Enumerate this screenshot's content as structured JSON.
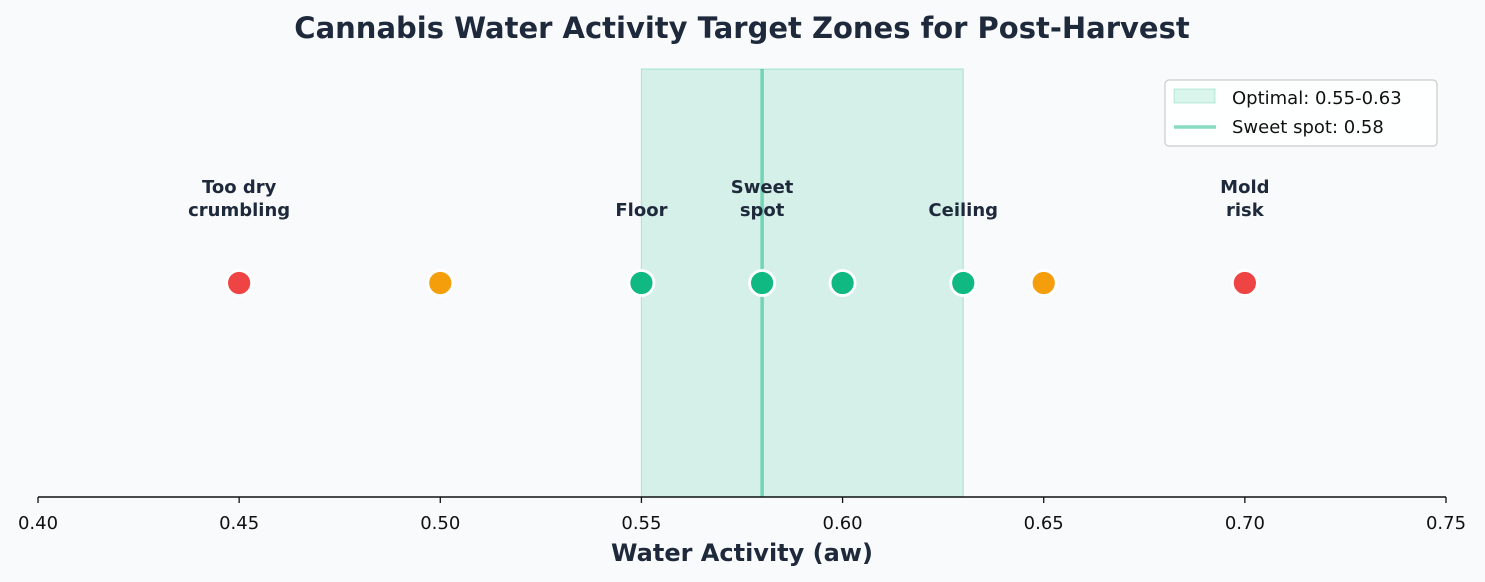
{
  "chart_data": {
    "type": "scatter",
    "title": "Cannabis Water Activity Target Zones for Post-Harvest",
    "xlabel": "Water Activity (aw)",
    "ylabel": "",
    "xlim": [
      0.4,
      0.75
    ],
    "x_ticks": [
      "0.40",
      "0.45",
      "0.50",
      "0.55",
      "0.60",
      "0.65",
      "0.70",
      "0.75"
    ],
    "y_axis_visible": false,
    "grid": false,
    "legend_position": "top-right",
    "optimal_band": {
      "from": 0.55,
      "to": 0.63,
      "color": "#10b981",
      "legend": "Optimal: 0.55-0.63"
    },
    "sweet_spot_line": {
      "x": 0.58,
      "color": "#10b981",
      "legend": "Sweet spot: 0.58"
    },
    "points": [
      {
        "x": 0.45,
        "color": "#ef4444",
        "label": [
          "Too dry",
          "crumbling"
        ]
      },
      {
        "x": 0.5,
        "color": "#f59e0b",
        "label": []
      },
      {
        "x": 0.55,
        "color": "#10b981",
        "label": [
          "Floor"
        ]
      },
      {
        "x": 0.58,
        "color": "#10b981",
        "label": [
          "Sweet",
          "spot"
        ]
      },
      {
        "x": 0.6,
        "color": "#10b981",
        "label": []
      },
      {
        "x": 0.63,
        "color": "#10b981",
        "label": [
          "Ceiling"
        ]
      },
      {
        "x": 0.65,
        "color": "#f59e0b",
        "label": []
      },
      {
        "x": 0.7,
        "color": "#ef4444",
        "label": [
          "Mold",
          "risk"
        ]
      }
    ]
  }
}
